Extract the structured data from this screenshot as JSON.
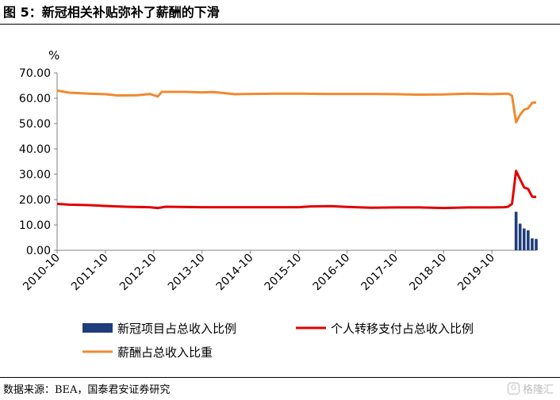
{
  "figure": {
    "title": "图 5：新冠相关补贴弥补了薪酬的下滑",
    "source": "数据来源：BEA，国泰君安证券研究",
    "watermark": "格隆汇"
  },
  "colors": {
    "subsidy": "#1f3d7a",
    "transfer": "#e00000",
    "compensation": "#f08a30"
  },
  "chart_data": {
    "type": "line",
    "ylabel": "%",
    "ylim": [
      0,
      70
    ],
    "yticks": [
      "0.00",
      "10.00",
      "20.00",
      "30.00",
      "40.00",
      "50.00",
      "60.00",
      "70.00"
    ],
    "xlim": [
      "2010-10",
      "2020-09"
    ],
    "xticks": [
      "2010-10",
      "2011-10",
      "2012-10",
      "2013-10",
      "2014-10",
      "2015-10",
      "2016-10",
      "2017-10",
      "2018-10",
      "2019-10"
    ],
    "grid": false,
    "legend_position": "bottom",
    "series": [
      {
        "name": "新冠项目占总收入比例",
        "kind": "bar",
        "color": "#1f3d7a",
        "points": [
          [
            "2020-04",
            15.2
          ],
          [
            "2020-05",
            10.5
          ],
          [
            "2020-06",
            8.6
          ],
          [
            "2020-07",
            7.9
          ],
          [
            "2020-08",
            4.7
          ],
          [
            "2020-09",
            4.5
          ]
        ]
      },
      {
        "name": "个人转移支付占总收入比例",
        "kind": "line",
        "color": "#e00000",
        "points": [
          [
            "2010-10",
            18.3
          ],
          [
            "2011-01",
            18.0
          ],
          [
            "2011-06",
            17.8
          ],
          [
            "2011-10",
            17.5
          ],
          [
            "2012-03",
            17.2
          ],
          [
            "2012-09",
            17.0
          ],
          [
            "2012-11",
            16.7
          ],
          [
            "2013-01",
            17.2
          ],
          [
            "2013-10",
            17.0
          ],
          [
            "2014-10",
            17.0
          ],
          [
            "2015-10",
            17.0
          ],
          [
            "2016-01",
            17.3
          ],
          [
            "2016-06",
            17.4
          ],
          [
            "2016-10",
            17.1
          ],
          [
            "2017-04",
            16.8
          ],
          [
            "2017-10",
            16.9
          ],
          [
            "2018-04",
            16.9
          ],
          [
            "2018-10",
            16.7
          ],
          [
            "2019-04",
            16.9
          ],
          [
            "2019-10",
            16.9
          ],
          [
            "2020-01",
            17.0
          ],
          [
            "2020-02",
            17.2
          ],
          [
            "2020-03",
            18.3
          ],
          [
            "2020-04",
            31.3
          ],
          [
            "2020-05",
            28.0
          ],
          [
            "2020-06",
            24.8
          ],
          [
            "2020-07",
            24.2
          ],
          [
            "2020-08",
            21.2
          ],
          [
            "2020-09",
            21.0
          ]
        ]
      },
      {
        "name": "薪酬占总收入比重",
        "kind": "line",
        "color": "#f08a30",
        "points": [
          [
            "2010-10",
            63.0
          ],
          [
            "2011-01",
            62.2
          ],
          [
            "2011-06",
            61.8
          ],
          [
            "2011-10",
            61.6
          ],
          [
            "2012-01",
            61.1
          ],
          [
            "2012-06",
            61.2
          ],
          [
            "2012-09",
            61.7
          ],
          [
            "2012-11",
            60.7
          ],
          [
            "2012-12",
            62.5
          ],
          [
            "2013-06",
            62.5
          ],
          [
            "2013-10",
            62.3
          ],
          [
            "2014-01",
            62.4
          ],
          [
            "2014-06",
            61.6
          ],
          [
            "2014-10",
            61.7
          ],
          [
            "2015-04",
            61.8
          ],
          [
            "2015-10",
            61.8
          ],
          [
            "2016-04",
            61.7
          ],
          [
            "2016-10",
            61.7
          ],
          [
            "2017-04",
            61.7
          ],
          [
            "2017-10",
            61.6
          ],
          [
            "2018-04",
            61.4
          ],
          [
            "2018-10",
            61.5
          ],
          [
            "2019-04",
            61.8
          ],
          [
            "2019-10",
            61.6
          ],
          [
            "2020-02",
            61.8
          ],
          [
            "2020-03",
            61.0
          ],
          [
            "2020-04",
            50.5
          ],
          [
            "2020-05",
            53.5
          ],
          [
            "2020-06",
            55.5
          ],
          [
            "2020-07",
            56.0
          ],
          [
            "2020-08",
            58.2
          ],
          [
            "2020-09",
            58.3
          ]
        ]
      }
    ]
  }
}
